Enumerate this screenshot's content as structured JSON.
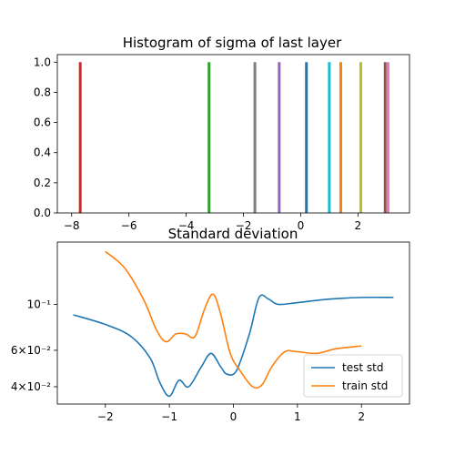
{
  "chart_data": [
    {
      "type": "bar",
      "title": "Histogram of sigma of last layer",
      "xlabel": "",
      "ylabel": "",
      "xlim": [
        -8.5,
        3.8
      ],
      "ylim": [
        0,
        1.05
      ],
      "xticks": [
        -8,
        -6,
        -4,
        -2,
        0,
        2
      ],
      "yticks": [
        0.0,
        0.2,
        0.4,
        0.6,
        0.8,
        1.0
      ],
      "ytick_labels": [
        "0.0",
        "0.2",
        "0.4",
        "0.6",
        "0.8",
        "1.0"
      ],
      "grid": false,
      "bars": [
        {
          "x": -7.7,
          "height": 1.0,
          "color": "#d62728"
        },
        {
          "x": -3.2,
          "height": 1.0,
          "color": "#2ca02c"
        },
        {
          "x": -1.6,
          "height": 1.0,
          "color": "#7f7f7f"
        },
        {
          "x": -0.75,
          "height": 1.0,
          "color": "#9467bd"
        },
        {
          "x": 0.2,
          "height": 1.0,
          "color": "#1f77b4"
        },
        {
          "x": 1.0,
          "height": 1.0,
          "color": "#17becf"
        },
        {
          "x": 1.4,
          "height": 1.0,
          "color": "#ff7f0e"
        },
        {
          "x": 2.1,
          "height": 1.0,
          "color": "#bcbd22"
        },
        {
          "x": 2.95,
          "height": 1.0,
          "color": "#8c564b"
        },
        {
          "x": 3.05,
          "height": 1.0,
          "color": "#e377c2"
        }
      ]
    },
    {
      "type": "line",
      "title": "Standard deviation",
      "xlabel": "",
      "ylabel": "",
      "yscale": "log",
      "xlim": [
        -2.75,
        2.75
      ],
      "ylim": [
        0.033,
        0.2
      ],
      "xticks": [
        -2,
        -1,
        0,
        1,
        2
      ],
      "yticks": [
        {
          "value": 0.1,
          "label": "10⁻¹"
        },
        {
          "value": 0.06,
          "label": "6×10⁻²"
        },
        {
          "value": 0.04,
          "label": "4×10⁻²"
        }
      ],
      "grid": false,
      "legend": "lower-right",
      "series": [
        {
          "name": "test std",
          "color": "#1f77b4",
          "points": [
            [
              -2.5,
              0.089
            ],
            [
              -2.0,
              0.08
            ],
            [
              -1.6,
              0.07
            ],
            [
              -1.3,
              0.055
            ],
            [
              -1.15,
              0.042
            ],
            [
              -1.0,
              0.036
            ],
            [
              -0.85,
              0.043
            ],
            [
              -0.7,
              0.04
            ],
            [
              -0.5,
              0.05
            ],
            [
              -0.35,
              0.058
            ],
            [
              -0.2,
              0.05
            ],
            [
              -0.1,
              0.046
            ],
            [
              0.05,
              0.048
            ],
            [
              0.25,
              0.072
            ],
            [
              0.4,
              0.108
            ],
            [
              0.55,
              0.106
            ],
            [
              0.7,
              0.1
            ],
            [
              1.0,
              0.102
            ],
            [
              1.5,
              0.106
            ],
            [
              2.0,
              0.108
            ],
            [
              2.5,
              0.108
            ]
          ]
        },
        {
          "name": "train std",
          "color": "#ff7f0e",
          "points": [
            [
              -2.0,
              0.18
            ],
            [
              -1.7,
              0.15
            ],
            [
              -1.4,
              0.105
            ],
            [
              -1.2,
              0.075
            ],
            [
              -1.05,
              0.066
            ],
            [
              -0.9,
              0.072
            ],
            [
              -0.75,
              0.072
            ],
            [
              -0.6,
              0.07
            ],
            [
              -0.45,
              0.095
            ],
            [
              -0.32,
              0.112
            ],
            [
              -0.2,
              0.09
            ],
            [
              -0.05,
              0.058
            ],
            [
              0.1,
              0.048
            ],
            [
              0.3,
              0.04
            ],
            [
              0.45,
              0.041
            ],
            [
              0.6,
              0.05
            ],
            [
              0.8,
              0.059
            ],
            [
              1.0,
              0.059
            ],
            [
              1.3,
              0.058
            ],
            [
              1.6,
              0.061
            ],
            [
              2.0,
              0.063
            ]
          ]
        }
      ]
    }
  ]
}
